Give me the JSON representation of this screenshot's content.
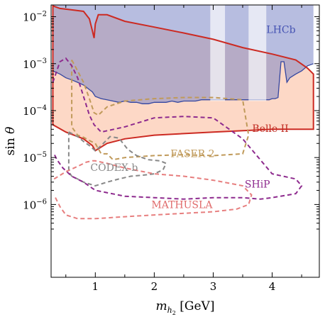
{
  "chart_data": {
    "type": "area",
    "xlabel": "m_{h2} [GeV]",
    "ylabel": "sin θ",
    "xlim": [
      0.25,
      4.8
    ],
    "ylim_log10": [
      -7.55,
      -1.75
    ],
    "x_ticks": [
      1,
      2,
      3,
      4
    ],
    "x_tick_labels": [
      "1",
      "2",
      "3",
      "4"
    ],
    "y_ticks": [
      1e-06,
      1e-05,
      0.0001,
      0.001,
      0.01
    ],
    "y_tick_labels": [
      "10",
      "10",
      "10",
      "10",
      "10"
    ],
    "y_tick_exponents": [
      "−6",
      "−5",
      "−4",
      "−3",
      "−2"
    ],
    "scale_y": "log",
    "grid": false,
    "series": [
      {
        "name": "LHCb",
        "kind": "filled",
        "color": "#7b86c6",
        "edge": "#3446a0",
        "upper": 0.1,
        "lower_x": [
          0.28,
          0.4,
          0.5,
          0.6,
          0.7,
          0.8,
          0.9,
          0.95,
          1.0,
          1.1,
          1.2,
          1.3,
          1.4,
          1.5,
          1.6,
          1.7,
          1.8,
          1.9,
          2.0,
          2.1,
          2.2,
          2.3,
          2.4,
          2.5,
          2.6,
          2.7,
          2.8,
          2.9,
          3.0,
          3.5,
          3.9,
          3.95,
          4.0,
          4.05,
          4.1,
          4.15,
          4.2,
          4.25,
          4.3,
          4.4,
          4.5,
          4.6,
          4.7
        ],
        "lower_y": [
          0.0007,
          0.0006,
          0.0005,
          0.00045,
          0.0004,
          0.00035,
          0.00028,
          0.00025,
          0.0002,
          0.00018,
          0.00017,
          0.00016,
          0.00015,
          0.00016,
          0.00015,
          0.00015,
          0.00014,
          0.00014,
          0.00015,
          0.00015,
          0.00015,
          0.00016,
          0.00015,
          0.00016,
          0.00016,
          0.00016,
          0.00017,
          0.00017,
          0.00017,
          0.00017,
          0.00017,
          0.00017,
          0.00018,
          0.00018,
          0.00019,
          0.0011,
          0.0011,
          0.0004,
          0.0005,
          0.0006,
          0.0007,
          0.0009,
          0.001
        ],
        "gaps_x": [
          [
            2.95,
            3.2
          ],
          [
            3.6,
            3.9
          ]
        ]
      },
      {
        "name": "Belle II",
        "kind": "filled",
        "color": "#fdd8c6",
        "edge": "#cc2a22",
        "lower_x": [
          0.28,
          0.5,
          0.8,
          0.95,
          1.0,
          1.2,
          1.5,
          2.0,
          3.0,
          4.0,
          4.6,
          4.7
        ],
        "lower_y": [
          5e-05,
          3.5e-05,
          2.5e-05,
          1.8e-05,
          1.4e-05,
          2e-05,
          2.5e-05,
          3e-05,
          3.5e-05,
          4e-05,
          4e-05,
          4e-05
        ],
        "upper_x": [
          0.28,
          0.4,
          0.6,
          0.8,
          0.9,
          0.95,
          0.98,
          1.0,
          1.05,
          1.2,
          1.5,
          2.0,
          2.5,
          3.0,
          3.5,
          4.0,
          4.4,
          4.6,
          4.7
        ],
        "upper_y": [
          0.017,
          0.015,
          0.014,
          0.013,
          0.009,
          0.005,
          0.0035,
          0.007,
          0.011,
          0.011,
          0.008,
          0.006,
          0.0045,
          0.0033,
          0.0022,
          0.0016,
          0.0012,
          0.0008,
          0.0006
        ]
      },
      {
        "name": "FASER 2",
        "kind": "dashed",
        "color": "#c09a5a",
        "x": [
          0.6,
          0.7,
          0.8,
          0.9,
          0.98,
          1.05,
          1.2,
          1.5,
          2.0,
          2.5,
          3.0,
          3.5,
          3.6,
          3.5,
          3.0,
          2.5,
          2.0,
          1.5,
          1.3,
          1.2,
          1.1,
          1.0,
          0.9,
          0.8,
          0.7,
          0.6,
          0.6
        ],
        "y": [
          0.0012,
          0.0007,
          0.0004,
          0.00018,
          9e-05,
          8e-05,
          0.00012,
          0.00016,
          0.00018,
          0.00019,
          0.00019,
          0.00017,
          3e-05,
          1.2e-05,
          1.1e-05,
          1.15e-05,
          1.1e-05,
          1e-05,
          9e-06,
          1.2e-05,
          1.2e-05,
          2e-05,
          2.3e-05,
          2.7e-05,
          3e-05,
          4.5e-05,
          0.0012
        ]
      },
      {
        "name": "CODEX b",
        "kind": "dashed",
        "color": "#888888",
        "x": [
          0.55,
          0.7,
          0.8,
          0.9,
          1.0,
          1.1,
          1.25,
          1.4,
          1.55,
          1.7,
          1.9,
          2.1,
          2.2,
          2.15,
          2.0,
          1.8,
          1.6,
          1.4,
          1.2,
          1.0,
          0.8,
          0.7,
          0.6,
          0.55,
          0.55
        ],
        "y": [
          3.5e-05,
          2.8e-05,
          2.2e-05,
          1.8e-05,
          1.4e-05,
          1.8e-05,
          2.8e-05,
          2.6e-05,
          1.5e-05,
          1.1e-05,
          9e-06,
          8.5e-06,
          7.5e-06,
          5.5e-06,
          4.5e-06,
          4.2e-06,
          4e-06,
          3.5e-06,
          3e-06,
          2.5e-06,
          3e-06,
          3.5e-06,
          4e-06,
          5e-06,
          3.5e-05
        ]
      },
      {
        "name": "SHiP",
        "kind": "dashed",
        "color": "#8e2b8e",
        "x": [
          0.28,
          0.4,
          0.5,
          0.6,
          0.7,
          0.8,
          0.9,
          0.98,
          1.1,
          1.5,
          2.0,
          2.5,
          3.0,
          3.5,
          4.0,
          4.4,
          4.5,
          4.4,
          4.0,
          3.8,
          3.5,
          3.0,
          2.5,
          2.0,
          1.5,
          1.0,
          0.8,
          0.6,
          0.45,
          0.35,
          0.3
        ],
        "y": [
          0.0004,
          0.0011,
          0.0013,
          0.0009,
          0.0005,
          0.0002,
          8e-05,
          5e-05,
          3.5e-05,
          4.5e-05,
          7e-05,
          7.5e-05,
          7e-05,
          2.5e-05,
          4.5e-06,
          3.5e-06,
          2.5e-06,
          1.7e-06,
          1.4e-06,
          1.3e-06,
          1.4e-06,
          1.4e-06,
          1.3e-06,
          1.4e-06,
          1.5e-06,
          2e-06,
          3e-06,
          4e-06,
          6e-06,
          9e-06,
          1.2e-05
        ]
      },
      {
        "name": "MATHUSLA",
        "kind": "dashed",
        "color": "#e77f7f",
        "x": [
          0.3,
          0.5,
          0.7,
          0.85,
          0.95,
          1.0,
          1.2,
          1.5,
          2.0,
          2.5,
          3.0,
          3.5,
          3.65,
          3.6,
          3.4,
          3.0,
          2.5,
          2.0,
          1.5,
          1.0,
          0.7,
          0.5,
          0.4,
          0.3
        ],
        "y": [
          3.5e-06,
          5e-06,
          6.5e-06,
          8e-06,
          8.5e-06,
          8.5e-06,
          7.5e-06,
          6e-06,
          4.5e-06,
          4e-06,
          3.3e-06,
          2.5e-06,
          1.6e-06,
          1e-06,
          8e-07,
          7e-07,
          6.5e-07,
          6e-07,
          5.5e-07,
          5e-07,
          5e-07,
          6e-07,
          9e-07,
          1.6e-06
        ]
      }
    ],
    "annotations": [
      {
        "text": "LHCb",
        "x": 4.15,
        "y": 0.0045,
        "color": "#4452b2"
      },
      {
        "text": "Belle II",
        "x": 3.97,
        "y": 3.5e-05,
        "color": "#c12b22"
      },
      {
        "text": "FASER 2",
        "x": 2.65,
        "y": 1.02e-05,
        "color": "#c09a5a"
      },
      {
        "text": "CODEX b",
        "x": 1.32,
        "y": 5.2e-06,
        "color": "#888888"
      },
      {
        "text": "SHiP",
        "x": 3.75,
        "y": 2.3e-06,
        "color": "#8e2b8e"
      },
      {
        "text": "MATHUSLA",
        "x": 2.47,
        "y": 8.3e-07,
        "color": "#e06a6a"
      }
    ]
  }
}
